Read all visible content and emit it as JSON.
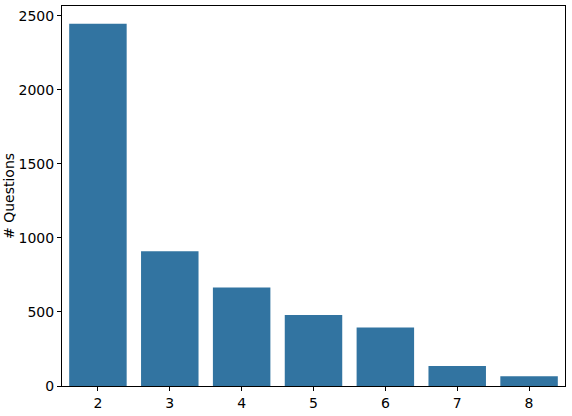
{
  "chart_data": {
    "type": "bar",
    "y_label": "# Questions",
    "categories": [
      "2",
      "3",
      "4",
      "5",
      "6",
      "7",
      "8"
    ],
    "values": [
      2445,
      910,
      665,
      480,
      395,
      135,
      65
    ],
    "color": "#3274a1",
    "ylim": [
      0,
      2565
    ],
    "yticks": [
      0,
      500,
      1000,
      1500,
      2000,
      2500
    ],
    "grid": false
  }
}
